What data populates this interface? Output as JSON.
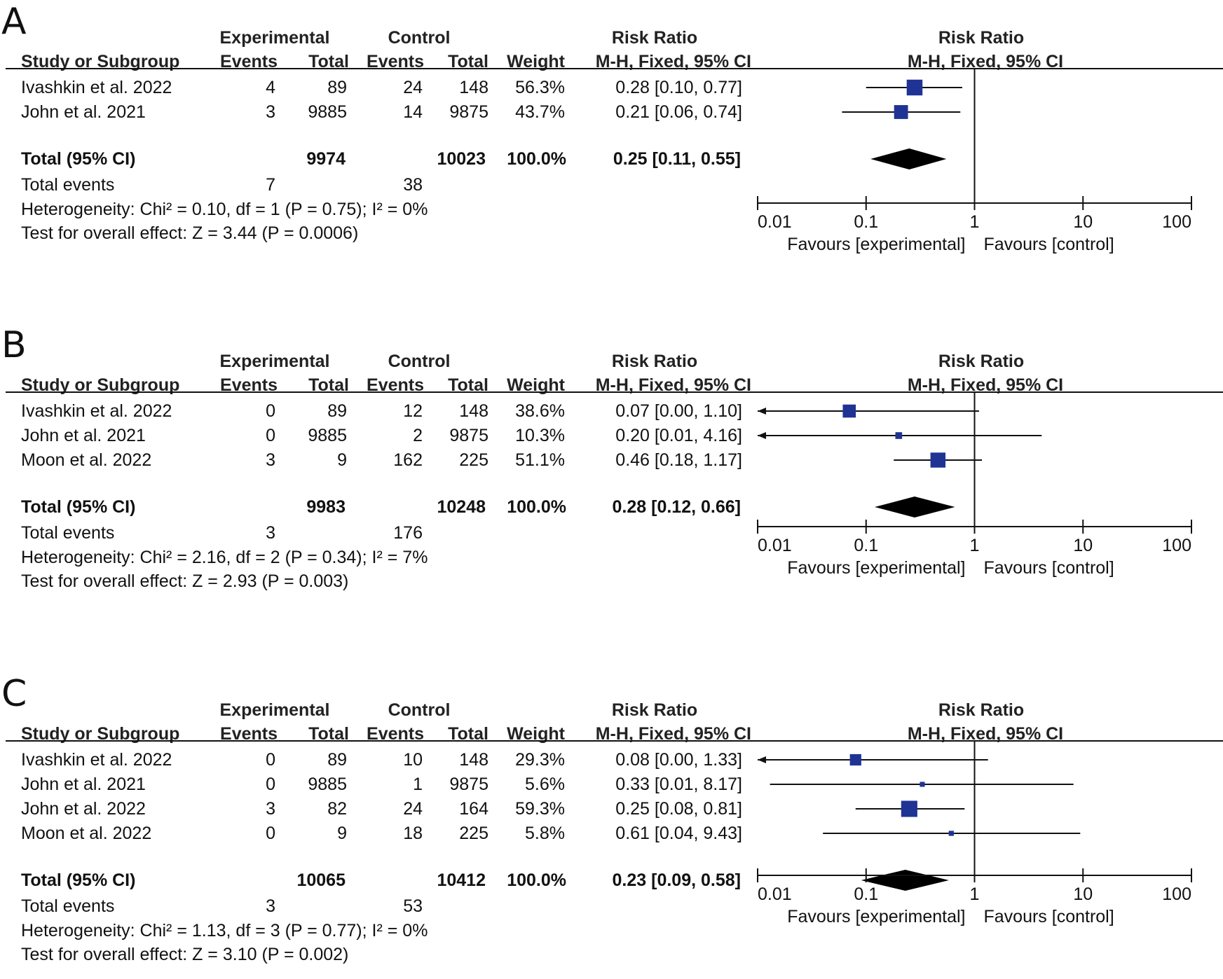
{
  "chart_data": [
    {
      "type": "forest",
      "panel": "A",
      "headers": {
        "experimental": "Experimental",
        "control": "Control",
        "risk_ratio": "Risk Ratio",
        "study": "Study or Subgroup",
        "events": "Events",
        "total": "Total",
        "weight": "Weight",
        "method": "M-H, Fixed, 95% CI"
      },
      "studies": [
        {
          "name": "Ivashkin et al. 2022",
          "exp_events": "4",
          "exp_total": "89",
          "ctrl_events": "24",
          "ctrl_total": "148",
          "weight": "56.3%",
          "ci_text": "0.28 [0.10, 0.77]",
          "rr": 0.28,
          "lo": 0.1,
          "hi": 0.77,
          "w": 56.3
        },
        {
          "name": "John et al. 2021",
          "exp_events": "3",
          "exp_total": "9885",
          "ctrl_events": "14",
          "ctrl_total": "9875",
          "weight": "43.7%",
          "ci_text": "0.21 [0.06, 0.74]",
          "rr": 0.21,
          "lo": 0.06,
          "hi": 0.74,
          "w": 43.7
        }
      ],
      "total": {
        "label": "Total (95% CI)",
        "exp_total": "9974",
        "ctrl_total": "10023",
        "weight": "100.0%",
        "ci_text": "0.25 [0.11, 0.55]",
        "rr": 0.25,
        "lo": 0.11,
        "hi": 0.55
      },
      "total_events": {
        "label": "Total events",
        "exp": "7",
        "ctrl": "38"
      },
      "heterogeneity": "Heterogeneity: Chi² = 0.10, df = 1 (P = 0.75); I² = 0%",
      "overall_effect": "Test for overall effect: Z = 3.44 (P = 0.0006)",
      "axis": {
        "scale": "log",
        "range": [
          0.01,
          100
        ],
        "ticks": [
          "0.01",
          "0.1",
          "1",
          "10",
          "100"
        ],
        "tick_values": [
          0.01,
          0.1,
          1,
          10,
          100
        ]
      },
      "favours_left": "Favours [experimental]",
      "favours_right": "Favours [control]"
    },
    {
      "type": "forest",
      "panel": "B",
      "headers": {
        "experimental": "Experimental",
        "control": "Control",
        "risk_ratio": "Risk Ratio",
        "study": "Study or Subgroup",
        "events": "Events",
        "total": "Total",
        "weight": "Weight",
        "method": "M-H, Fixed, 95% CI"
      },
      "studies": [
        {
          "name": "Ivashkin et al. 2022",
          "exp_events": "0",
          "exp_total": "89",
          "ctrl_events": "12",
          "ctrl_total": "148",
          "weight": "38.6%",
          "ci_text": "0.07 [0.00, 1.10]",
          "rr": 0.07,
          "lo": 0.004,
          "hi": 1.1,
          "w": 38.6
        },
        {
          "name": "John et al. 2021",
          "exp_events": "0",
          "exp_total": "9885",
          "ctrl_events": "2",
          "ctrl_total": "9875",
          "weight": "10.3%",
          "ci_text": "0.20 [0.01, 4.16]",
          "rr": 0.2,
          "lo": 0.009,
          "hi": 4.16,
          "w": 10.3
        },
        {
          "name": "Moon et al. 2022",
          "exp_events": "3",
          "exp_total": "9",
          "ctrl_events": "162",
          "ctrl_total": "225",
          "weight": "51.1%",
          "ci_text": "0.46 [0.18, 1.17]",
          "rr": 0.46,
          "lo": 0.18,
          "hi": 1.17,
          "w": 51.1
        }
      ],
      "total": {
        "label": "Total (95% CI)",
        "exp_total": "9983",
        "ctrl_total": "10248",
        "weight": "100.0%",
        "ci_text": "0.28 [0.12, 0.66]",
        "rr": 0.28,
        "lo": 0.12,
        "hi": 0.66
      },
      "total_events": {
        "label": "Total events",
        "exp": "3",
        "ctrl": "176"
      },
      "heterogeneity": "Heterogeneity: Chi² = 2.16, df = 2 (P = 0.34); I² = 7%",
      "overall_effect": "Test for overall effect: Z = 2.93 (P = 0.003)",
      "axis": {
        "scale": "log",
        "range": [
          0.01,
          100
        ],
        "ticks": [
          "0.01",
          "0.1",
          "1",
          "10",
          "100"
        ],
        "tick_values": [
          0.01,
          0.1,
          1,
          10,
          100
        ]
      },
      "favours_left": "Favours [experimental]",
      "favours_right": "Favours [control]"
    },
    {
      "type": "forest",
      "panel": "C",
      "headers": {
        "experimental": "Experimental",
        "control": "Control",
        "risk_ratio": "Risk Ratio",
        "study": "Study or Subgroup",
        "events": "Events",
        "total": "Total",
        "weight": "Weight",
        "method": "M-H, Fixed, 95% CI"
      },
      "studies": [
        {
          "name": "Ivashkin et al. 2022",
          "exp_events": "0",
          "exp_total": "89",
          "ctrl_events": "10",
          "ctrl_total": "148",
          "weight": "29.3%",
          "ci_text": "0.08 [0.00, 1.33]",
          "rr": 0.08,
          "lo": 0.004,
          "hi": 1.33,
          "w": 29.3
        },
        {
          "name": "John et al. 2021",
          "exp_events": "0",
          "exp_total": "9885",
          "ctrl_events": "1",
          "ctrl_total": "9875",
          "weight": "5.6%",
          "ci_text": "0.33 [0.01, 8.17]",
          "rr": 0.33,
          "lo": 0.013,
          "hi": 8.17,
          "w": 5.6
        },
        {
          "name": "John et al. 2022",
          "exp_events": "3",
          "exp_total": "82",
          "ctrl_events": "24",
          "ctrl_total": "164",
          "weight": "59.3%",
          "ci_text": "0.25 [0.08, 0.81]",
          "rr": 0.25,
          "lo": 0.08,
          "hi": 0.81,
          "w": 59.3
        },
        {
          "name": "Moon et al. 2022",
          "exp_events": "0",
          "exp_total": "9",
          "ctrl_events": "18",
          "ctrl_total": "225",
          "weight": "5.8%",
          "ci_text": "0.61 [0.04, 9.43]",
          "rr": 0.61,
          "lo": 0.04,
          "hi": 9.43,
          "w": 5.8
        }
      ],
      "total": {
        "label": "Total (95% CI)",
        "exp_total": "10065",
        "ctrl_total": "10412",
        "weight": "100.0%",
        "ci_text": "0.23 [0.09, 0.58]",
        "rr": 0.23,
        "lo": 0.09,
        "hi": 0.58
      },
      "total_events": {
        "label": "Total events",
        "exp": "3",
        "ctrl": "53"
      },
      "heterogeneity": "Heterogeneity: Chi² = 1.13, df = 3 (P = 0.77); I² = 0%",
      "overall_effect": "Test for overall effect: Z = 3.10 (P = 0.002)",
      "axis": {
        "scale": "log",
        "range": [
          0.01,
          100
        ],
        "ticks": [
          "0.01",
          "0.1",
          "1",
          "10",
          "100"
        ],
        "tick_values": [
          0.01,
          0.1,
          1,
          10,
          100
        ]
      },
      "favours_left": "Favours [experimental]",
      "favours_right": "Favours [control]"
    }
  ],
  "colors": {
    "square": "#1f3394",
    "diamond": "#000000",
    "line": "#111111"
  }
}
